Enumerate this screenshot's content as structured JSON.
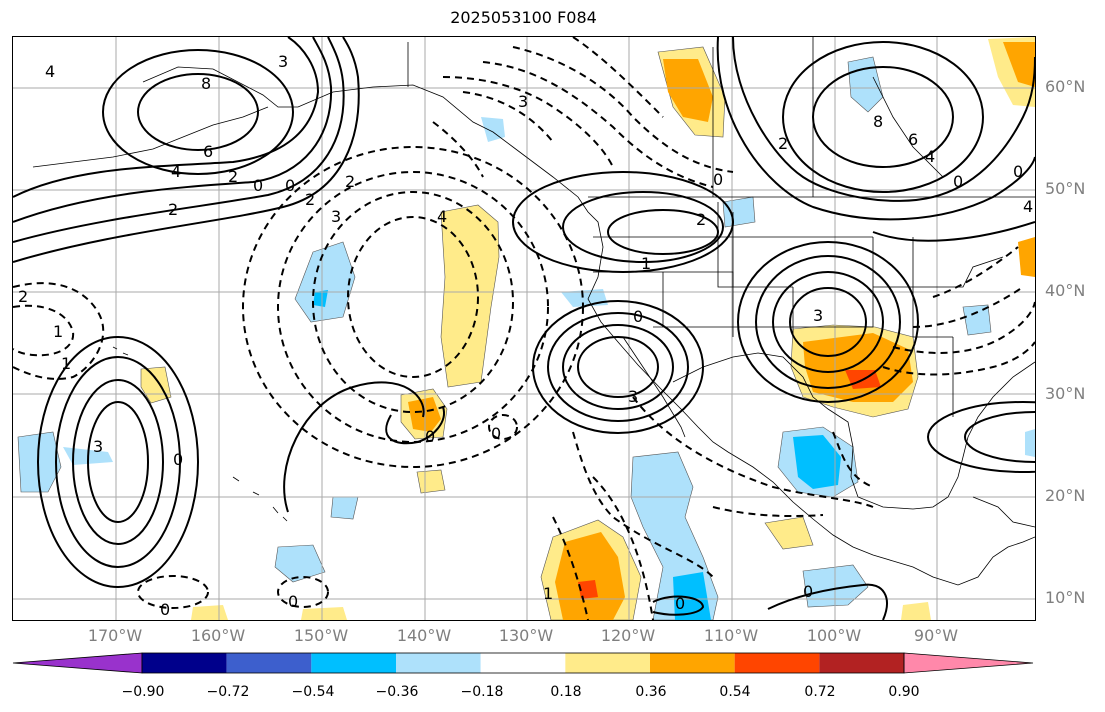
{
  "title": "2025053100 F084",
  "lat_labels": [
    "60°N",
    "50°N",
    "40°N",
    "30°N",
    "20°N",
    "10°N"
  ],
  "lon_labels": [
    "170°W",
    "160°W",
    "150°W",
    "140°W",
    "130°W",
    "120°W",
    "110°W",
    "100°W",
    "90°W"
  ],
  "colorbar": {
    "colors": [
      "#9932cc",
      "#00008b",
      "#3d5fcd",
      "#00bfff",
      "#aee1fb",
      "#ffffff",
      "#ffeb8a",
      "#ffa500",
      "#ff4500",
      "#b22222",
      "#ff88aa"
    ],
    "tick_labels": [
      "−0.90",
      "−0.72",
      "−0.54",
      "−0.36",
      "−0.18",
      "0.18",
      "0.36",
      "0.54",
      "0.72",
      "0.90"
    ]
  },
  "contour_labels": [
    "4",
    "8",
    "3",
    "6",
    "4",
    "2",
    "0",
    "0",
    "2",
    "2",
    "3",
    "4",
    "2",
    "1",
    "1",
    "2",
    "0",
    "3",
    "3",
    "0",
    "0",
    "0",
    "1",
    "2",
    "3",
    "0",
    "8",
    "6",
    "4",
    "0",
    "4",
    "2",
    "3",
    "0",
    "0",
    "0",
    "0",
    "0",
    "1"
  ]
}
